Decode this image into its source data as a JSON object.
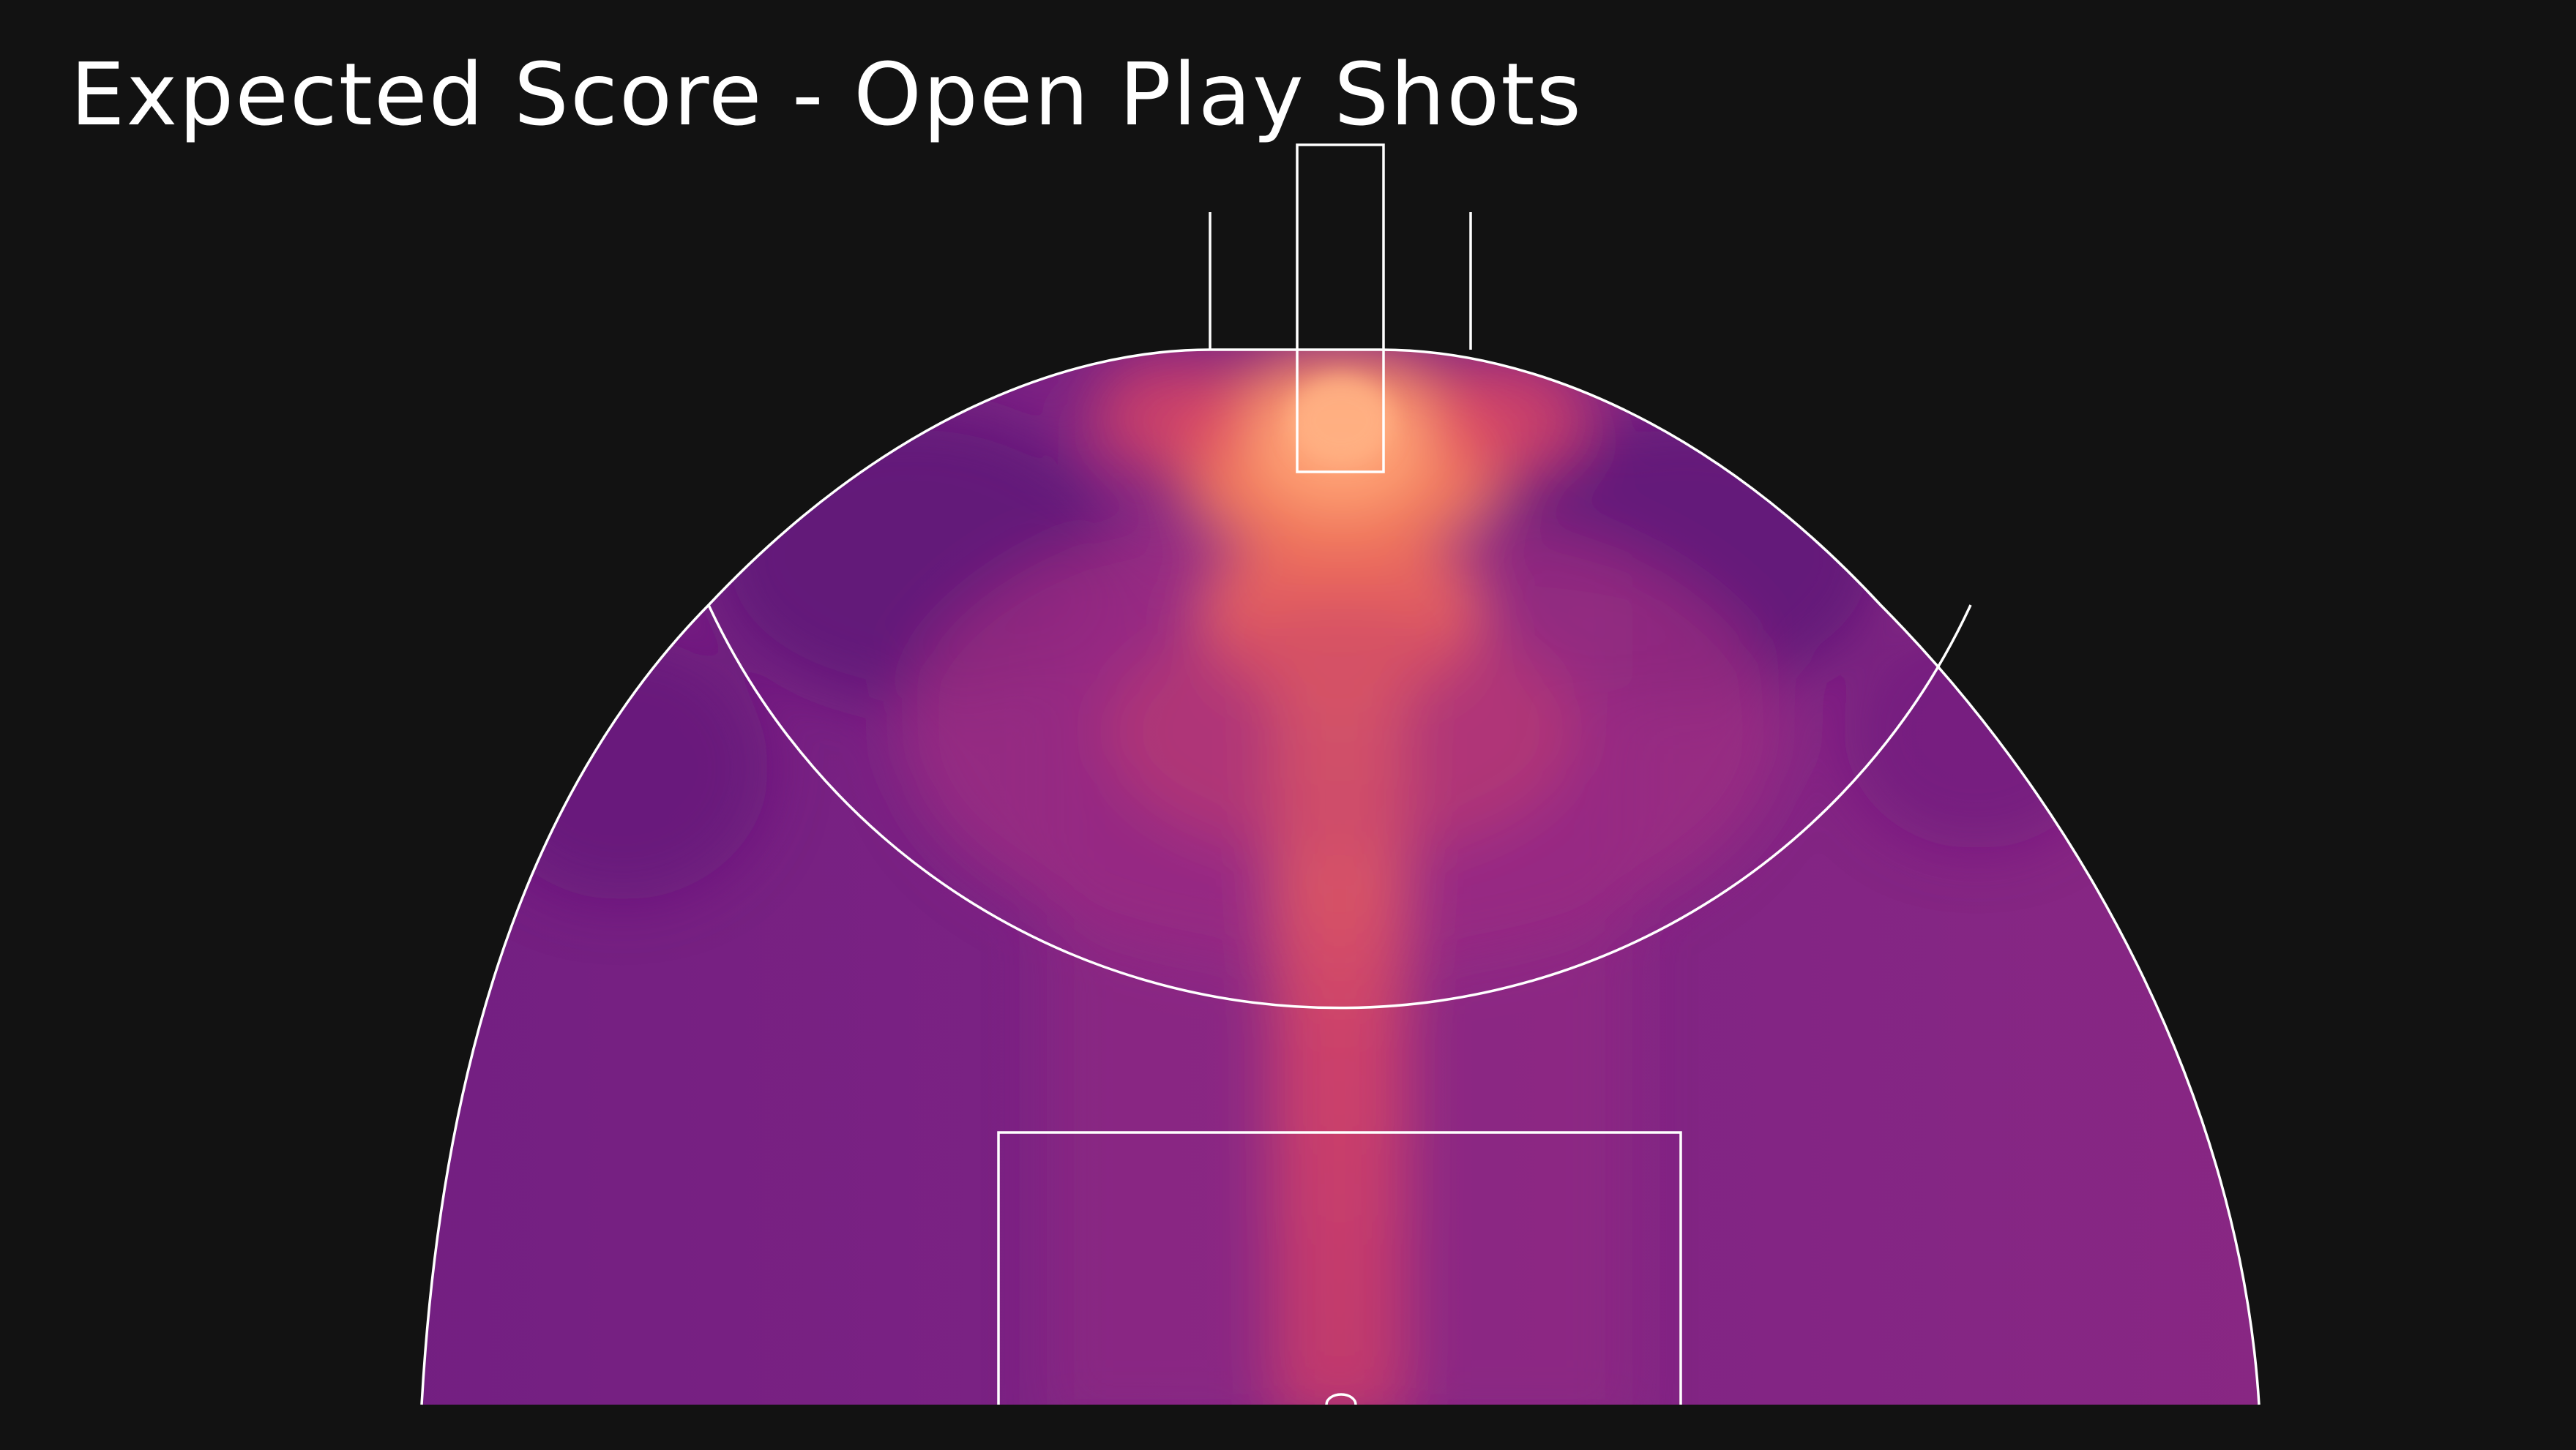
{
  "chart_data": {
    "type": "heatmap",
    "title": "Expected Score - Open Play Shots",
    "subject": "expected score by shot location, Australian football attacking half",
    "legend": "none",
    "grid": false,
    "colormap": [
      "#5f1478",
      "#7d2283",
      "#a02d82",
      "#d2466b",
      "#f37a5c",
      "#ffa477"
    ],
    "hotspots": [
      {
        "zone": "goal-square",
        "intensity": 1.0
      },
      {
        "zone": "in-front-15m",
        "intensity": 0.85
      },
      {
        "zone": "central-corridor-to-50",
        "intensity": 0.62
      },
      {
        "zone": "goal-mouth-pockets",
        "intensity": 0.55
      }
    ],
    "coldspots": [
      {
        "zone": "left-forward-pocket",
        "intensity": 0.0
      },
      {
        "zone": "right-forward-pocket",
        "intensity": 0.08
      }
    ],
    "field_markings": [
      "boundary-line",
      "goal-posts",
      "behind-posts",
      "goal-square",
      "fifty-metre-arc",
      "centre-square"
    ]
  }
}
